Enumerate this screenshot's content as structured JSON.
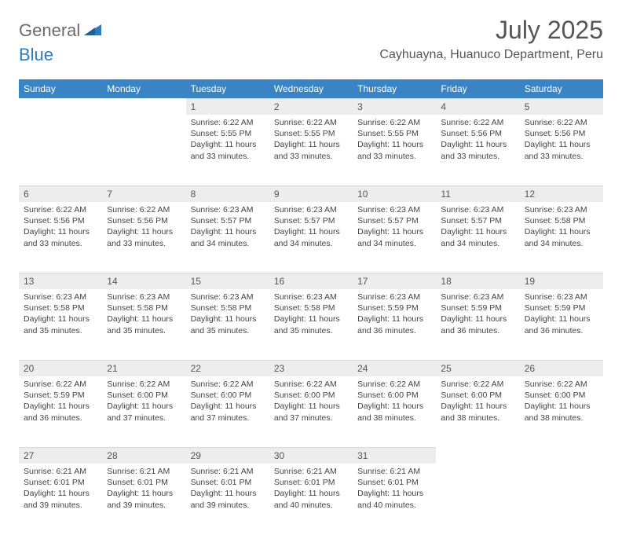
{
  "brand": {
    "text_general": "General",
    "text_blue": "Blue",
    "icon_color": "#2f7bbf"
  },
  "title": "July 2025",
  "location": "Cayhuayna, Huanuco Department, Peru",
  "header_bg": "#3b84c4",
  "header_fg": "#ffffff",
  "daynum_bg": "#ededed",
  "weekdays": [
    "Sunday",
    "Monday",
    "Tuesday",
    "Wednesday",
    "Thursday",
    "Friday",
    "Saturday"
  ],
  "weeks": [
    [
      null,
      null,
      {
        "n": "1",
        "sr": "Sunrise: 6:22 AM",
        "ss": "Sunset: 5:55 PM",
        "dl": "Daylight: 11 hours and 33 minutes."
      },
      {
        "n": "2",
        "sr": "Sunrise: 6:22 AM",
        "ss": "Sunset: 5:55 PM",
        "dl": "Daylight: 11 hours and 33 minutes."
      },
      {
        "n": "3",
        "sr": "Sunrise: 6:22 AM",
        "ss": "Sunset: 5:55 PM",
        "dl": "Daylight: 11 hours and 33 minutes."
      },
      {
        "n": "4",
        "sr": "Sunrise: 6:22 AM",
        "ss": "Sunset: 5:56 PM",
        "dl": "Daylight: 11 hours and 33 minutes."
      },
      {
        "n": "5",
        "sr": "Sunrise: 6:22 AM",
        "ss": "Sunset: 5:56 PM",
        "dl": "Daylight: 11 hours and 33 minutes."
      }
    ],
    [
      {
        "n": "6",
        "sr": "Sunrise: 6:22 AM",
        "ss": "Sunset: 5:56 PM",
        "dl": "Daylight: 11 hours and 33 minutes."
      },
      {
        "n": "7",
        "sr": "Sunrise: 6:22 AM",
        "ss": "Sunset: 5:56 PM",
        "dl": "Daylight: 11 hours and 33 minutes."
      },
      {
        "n": "8",
        "sr": "Sunrise: 6:23 AM",
        "ss": "Sunset: 5:57 PM",
        "dl": "Daylight: 11 hours and 34 minutes."
      },
      {
        "n": "9",
        "sr": "Sunrise: 6:23 AM",
        "ss": "Sunset: 5:57 PM",
        "dl": "Daylight: 11 hours and 34 minutes."
      },
      {
        "n": "10",
        "sr": "Sunrise: 6:23 AM",
        "ss": "Sunset: 5:57 PM",
        "dl": "Daylight: 11 hours and 34 minutes."
      },
      {
        "n": "11",
        "sr": "Sunrise: 6:23 AM",
        "ss": "Sunset: 5:57 PM",
        "dl": "Daylight: 11 hours and 34 minutes."
      },
      {
        "n": "12",
        "sr": "Sunrise: 6:23 AM",
        "ss": "Sunset: 5:58 PM",
        "dl": "Daylight: 11 hours and 34 minutes."
      }
    ],
    [
      {
        "n": "13",
        "sr": "Sunrise: 6:23 AM",
        "ss": "Sunset: 5:58 PM",
        "dl": "Daylight: 11 hours and 35 minutes."
      },
      {
        "n": "14",
        "sr": "Sunrise: 6:23 AM",
        "ss": "Sunset: 5:58 PM",
        "dl": "Daylight: 11 hours and 35 minutes."
      },
      {
        "n": "15",
        "sr": "Sunrise: 6:23 AM",
        "ss": "Sunset: 5:58 PM",
        "dl": "Daylight: 11 hours and 35 minutes."
      },
      {
        "n": "16",
        "sr": "Sunrise: 6:23 AM",
        "ss": "Sunset: 5:58 PM",
        "dl": "Daylight: 11 hours and 35 minutes."
      },
      {
        "n": "17",
        "sr": "Sunrise: 6:23 AM",
        "ss": "Sunset: 5:59 PM",
        "dl": "Daylight: 11 hours and 36 minutes."
      },
      {
        "n": "18",
        "sr": "Sunrise: 6:23 AM",
        "ss": "Sunset: 5:59 PM",
        "dl": "Daylight: 11 hours and 36 minutes."
      },
      {
        "n": "19",
        "sr": "Sunrise: 6:23 AM",
        "ss": "Sunset: 5:59 PM",
        "dl": "Daylight: 11 hours and 36 minutes."
      }
    ],
    [
      {
        "n": "20",
        "sr": "Sunrise: 6:22 AM",
        "ss": "Sunset: 5:59 PM",
        "dl": "Daylight: 11 hours and 36 minutes."
      },
      {
        "n": "21",
        "sr": "Sunrise: 6:22 AM",
        "ss": "Sunset: 6:00 PM",
        "dl": "Daylight: 11 hours and 37 minutes."
      },
      {
        "n": "22",
        "sr": "Sunrise: 6:22 AM",
        "ss": "Sunset: 6:00 PM",
        "dl": "Daylight: 11 hours and 37 minutes."
      },
      {
        "n": "23",
        "sr": "Sunrise: 6:22 AM",
        "ss": "Sunset: 6:00 PM",
        "dl": "Daylight: 11 hours and 37 minutes."
      },
      {
        "n": "24",
        "sr": "Sunrise: 6:22 AM",
        "ss": "Sunset: 6:00 PM",
        "dl": "Daylight: 11 hours and 38 minutes."
      },
      {
        "n": "25",
        "sr": "Sunrise: 6:22 AM",
        "ss": "Sunset: 6:00 PM",
        "dl": "Daylight: 11 hours and 38 minutes."
      },
      {
        "n": "26",
        "sr": "Sunrise: 6:22 AM",
        "ss": "Sunset: 6:00 PM",
        "dl": "Daylight: 11 hours and 38 minutes."
      }
    ],
    [
      {
        "n": "27",
        "sr": "Sunrise: 6:21 AM",
        "ss": "Sunset: 6:01 PM",
        "dl": "Daylight: 11 hours and 39 minutes."
      },
      {
        "n": "28",
        "sr": "Sunrise: 6:21 AM",
        "ss": "Sunset: 6:01 PM",
        "dl": "Daylight: 11 hours and 39 minutes."
      },
      {
        "n": "29",
        "sr": "Sunrise: 6:21 AM",
        "ss": "Sunset: 6:01 PM",
        "dl": "Daylight: 11 hours and 39 minutes."
      },
      {
        "n": "30",
        "sr": "Sunrise: 6:21 AM",
        "ss": "Sunset: 6:01 PM",
        "dl": "Daylight: 11 hours and 40 minutes."
      },
      {
        "n": "31",
        "sr": "Sunrise: 6:21 AM",
        "ss": "Sunset: 6:01 PM",
        "dl": "Daylight: 11 hours and 40 minutes."
      },
      null,
      null
    ]
  ]
}
